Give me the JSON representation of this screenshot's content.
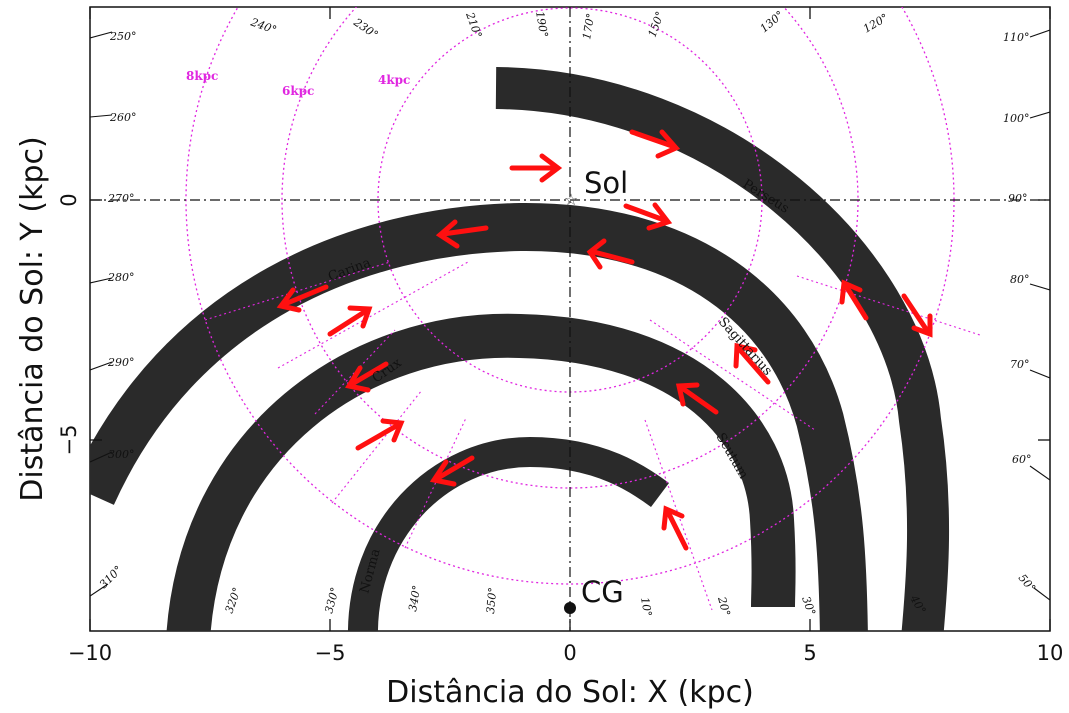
{
  "axes": {
    "xlabel": "Distância do Sol: X (kpc)",
    "ylabel": "Distância do Sol: Y (kpc)",
    "xlim": [
      -10,
      10
    ],
    "ylim": [
      -9,
      4
    ],
    "x_ticks": [
      "−10",
      "−5",
      "0",
      "5",
      "10"
    ],
    "y_ticks": [
      "0",
      "−5"
    ]
  },
  "markers": {
    "sun": "Sol",
    "galactic_center": "CG"
  },
  "rings": [
    "4kpc",
    "6kpc",
    "8kpc"
  ],
  "arms": [
    {
      "name": "Perseus"
    },
    {
      "name": "Carina"
    },
    {
      "name": "Sagittarius"
    },
    {
      "name": "Crux"
    },
    {
      "name": "Scutum"
    },
    {
      "name": "Norma"
    }
  ],
  "longitudes": [
    "250°",
    "240°",
    "230°",
    "210°",
    "190°",
    "170°",
    "150°",
    "130°",
    "120°",
    "110°",
    "260°",
    "100°",
    "270°",
    "90°",
    "280°",
    "80°",
    "290°",
    "70°",
    "300°",
    "60°",
    "310°",
    "320°",
    "330°",
    "340°",
    "350°",
    "10°",
    "20°",
    "30°",
    "40°",
    "50°"
  ],
  "colors": {
    "arm": "#2a2a2a",
    "ring": "#e026e0",
    "arrow": "#ff1010",
    "axis": "#111111"
  }
}
